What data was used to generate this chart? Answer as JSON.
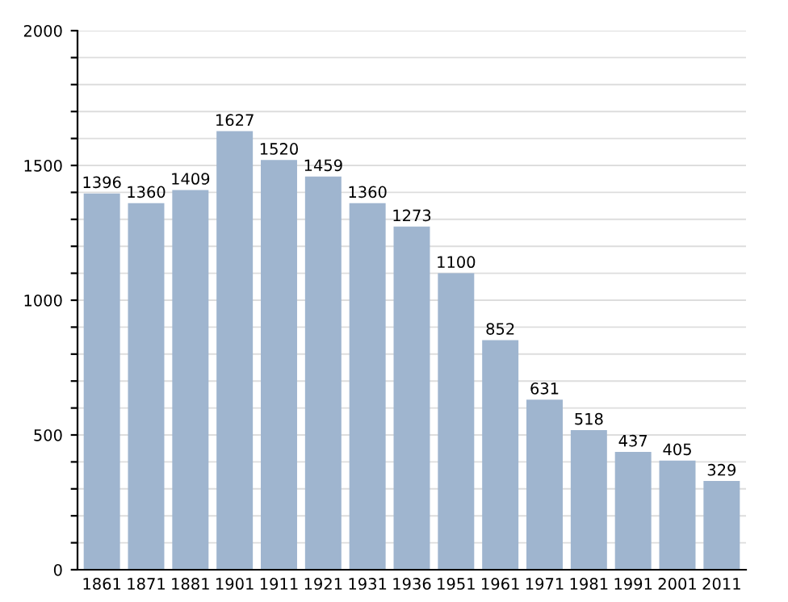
{
  "chart_data": {
    "type": "bar",
    "categories": [
      "1861",
      "1871",
      "1881",
      "1901",
      "1911",
      "1921",
      "1931",
      "1936",
      "1951",
      "1961",
      "1971",
      "1981",
      "1991",
      "2001",
      "2011"
    ],
    "values": [
      1396,
      1360,
      1409,
      1627,
      1520,
      1459,
      1360,
      1273,
      1100,
      852,
      631,
      518,
      437,
      405,
      329
    ],
    "color": "#9fb5cf",
    "data_labels": true,
    "ylim": [
      0,
      2000
    ],
    "yticks": [
      0,
      {
        "value": 100,
        "label": null
      },
      {
        "value": 200,
        "label": null
      },
      {
        "value": 300,
        "label": null
      },
      {
        "value": 400,
        "label": null
      },
      500,
      {
        "value": 600,
        "label": null
      },
      {
        "value": 700,
        "label": null
      },
      {
        "value": 800,
        "label": null
      },
      {
        "value": 900,
        "label": null
      },
      1000,
      {
        "value": 1100,
        "label": null
      },
      {
        "value": 1200,
        "label": null
      },
      {
        "value": 1300,
        "label": null
      },
      {
        "value": 1400,
        "label": null
      },
      1500,
      {
        "value": 1600,
        "label": null
      },
      {
        "value": 1700,
        "label": null
      },
      {
        "value": 1800,
        "label": null
      },
      {
        "value": 1900,
        "label": null
      },
      2000
    ],
    "grid": "y"
  }
}
